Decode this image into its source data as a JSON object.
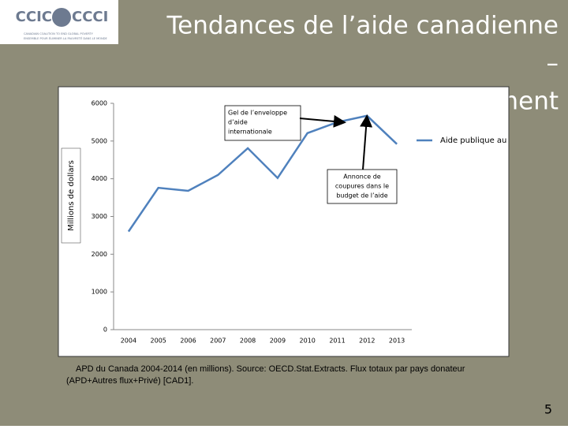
{
  "logo": {
    "left": "CCIC",
    "right": "CCCI",
    "tagline": [
      "CANADIAN COALITION TO END GLOBAL POVERTY",
      "ENSEMBLE POUR ÉLIMINER LA PAUVRETÉ DANS LE MONDE"
    ]
  },
  "slide_title": [
    "Tendances de l’aide canadienne",
    "–",
    "ment"
  ],
  "chart_data": {
    "type": "line",
    "y_label": "Millions de dollars",
    "categories": [
      "2004",
      "2005",
      "2006",
      "2007",
      "2008",
      "2009",
      "2010",
      "2011",
      "2012",
      "2013"
    ],
    "series": [
      {
        "name": "Aide publique au",
        "color": "#4f81bd",
        "values": [
          2600,
          3760,
          3680,
          4100,
          4810,
          4020,
          5210,
          5500,
          5670,
          4920
        ]
      }
    ],
    "ylim": [
      0,
      6000
    ],
    "yticks": [
      0,
      1000,
      2000,
      3000,
      4000,
      5000,
      6000
    ],
    "annotations": [
      [
        "Gel de l’enveloppe",
        "d’aide",
        "internationale"
      ],
      [
        "Annonce de",
        "coupures dans le",
        "budget de l’aide"
      ]
    ]
  },
  "footnote": [
    "APD du Canada 2004-2014 (en millions). Source: OECD.Stat.Extracts. Flux totaux par pays donateur",
    "(APD+Autres flux+Privé) [CAD1]."
  ],
  "page_number": "5"
}
